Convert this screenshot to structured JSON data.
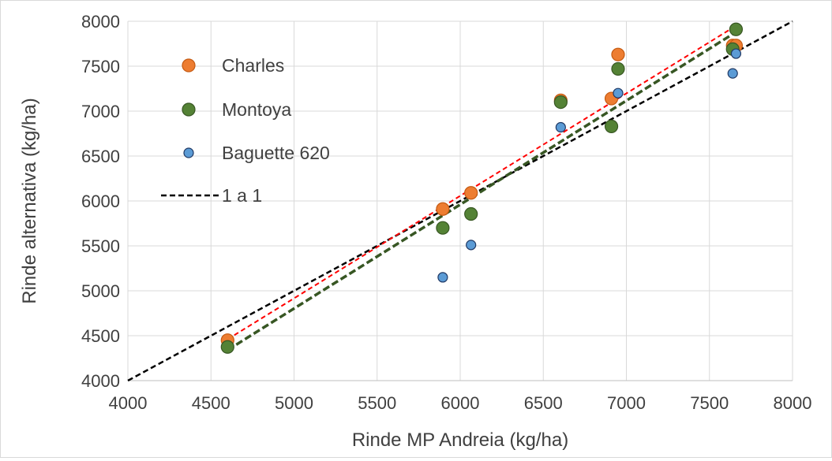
{
  "chart_data": {
    "type": "scatter",
    "xlabel": "Rinde MP Andreia (kg/ha)",
    "ylabel": "Rinde alternativa (kg/ha)",
    "xlim": [
      4000,
      8000
    ],
    "ylim": [
      4000,
      8000
    ],
    "xticks": [
      4000,
      4500,
      5000,
      5500,
      6000,
      6500,
      7000,
      7500,
      8000
    ],
    "yticks": [
      4000,
      4500,
      5000,
      5500,
      6000,
      6500,
      7000,
      7500,
      8000
    ],
    "xtick_labels": [
      "4000",
      "4500",
      "5000",
      "5500",
      "6000",
      "6500",
      "7000",
      "7500",
      "8000"
    ],
    "ytick_labels": [
      "4000",
      "4500",
      "5000",
      "5500",
      "6000",
      "6500",
      "7000",
      "7500",
      "8000"
    ],
    "grid": "vertical and horizontal major gridlines",
    "legend_position": "upper-left inside plot",
    "series": [
      {
        "name": "Charles",
        "color": "#ED7D31",
        "marker": "circle",
        "x": [
          4600,
          5895,
          6065,
          6605,
          6910,
          6950,
          7640,
          7660
        ],
        "y": [
          4450,
          5910,
          6090,
          7120,
          7140,
          7630,
          7730,
          7730
        ],
        "trendline": {
          "color": "#FF0000",
          "dash": "dashed",
          "x": [
            4600,
            7660
          ],
          "y": [
            4460,
            7950
          ]
        }
      },
      {
        "name": "Montoya",
        "color": "#548235",
        "marker": "circle",
        "x": [
          4600,
          5895,
          6065,
          6605,
          6910,
          6950,
          7640,
          7660
        ],
        "y": [
          4375,
          5700,
          5855,
          7100,
          6830,
          7470,
          7690,
          7910
        ],
        "trendline": {
          "color": "#375623",
          "dash": "dashed",
          "x": [
            4600,
            7660
          ],
          "y": [
            4340,
            7880
          ]
        }
      },
      {
        "name": "Baguette 620",
        "color": "#5B9BD5",
        "marker": "circle-small",
        "x": [
          5895,
          6065,
          6605,
          6950,
          7640,
          7660
        ],
        "y": [
          5150,
          5510,
          6820,
          7200,
          7420,
          7640
        ]
      },
      {
        "name": "1 a 1",
        "color": "#000000",
        "line": "dashed",
        "x": [
          4000,
          8000
        ],
        "y": [
          4000,
          8000
        ]
      }
    ]
  }
}
